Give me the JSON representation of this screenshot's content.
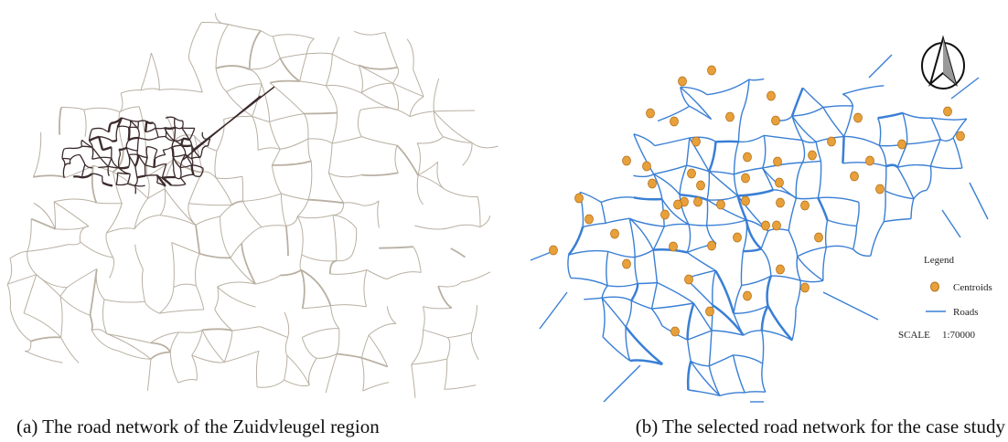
{
  "panels": [
    {
      "caption": "(a) The road network of the Zuidvleugel region"
    },
    {
      "caption": "(b) The selected road network for the case study",
      "legend": {
        "title": "Legend",
        "items": [
          {
            "label": "Centroids"
          },
          {
            "label": "Roads"
          }
        ],
        "scale_label": "SCALE",
        "scale": "1:70000"
      }
    }
  ]
}
